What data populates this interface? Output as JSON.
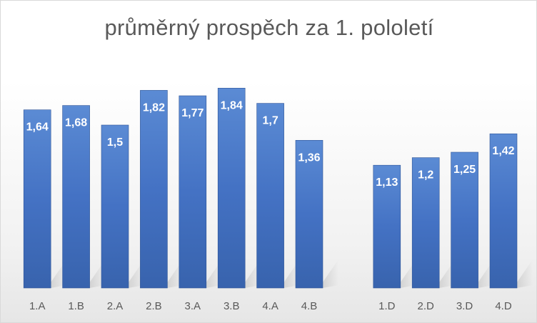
{
  "chart_data": {
    "type": "bar",
    "title": "průměrný prospěch za 1. pololetí",
    "xlabel": "",
    "ylabel": "",
    "categories": [
      "1.A",
      "1.B",
      "2.A",
      "2.B",
      "3.A",
      "3.B",
      "4.A",
      "4.B",
      "",
      "1.D",
      "2.D",
      "3.D",
      "4.D"
    ],
    "values": [
      1.64,
      1.68,
      1.5,
      1.82,
      1.77,
      1.84,
      1.7,
      1.36,
      null,
      1.13,
      1.2,
      1.25,
      1.42
    ],
    "value_labels": [
      "1,64",
      "1,68",
      "1,5",
      "1,82",
      "1,77",
      "1,84",
      "1,7",
      "1,36",
      "",
      "1,13",
      "1,2",
      "1,25",
      "1,42"
    ],
    "ylim": [
      0,
      2
    ],
    "grid": false,
    "legend": "none",
    "show_y_axis": false,
    "bar_color": "#4472c4",
    "bar_color_light": "#5b8bd4",
    "bar_color_dark": "#3863ad",
    "label_color": "#ffffff",
    "tick_color": "#595959",
    "title_color": "#595959"
  }
}
